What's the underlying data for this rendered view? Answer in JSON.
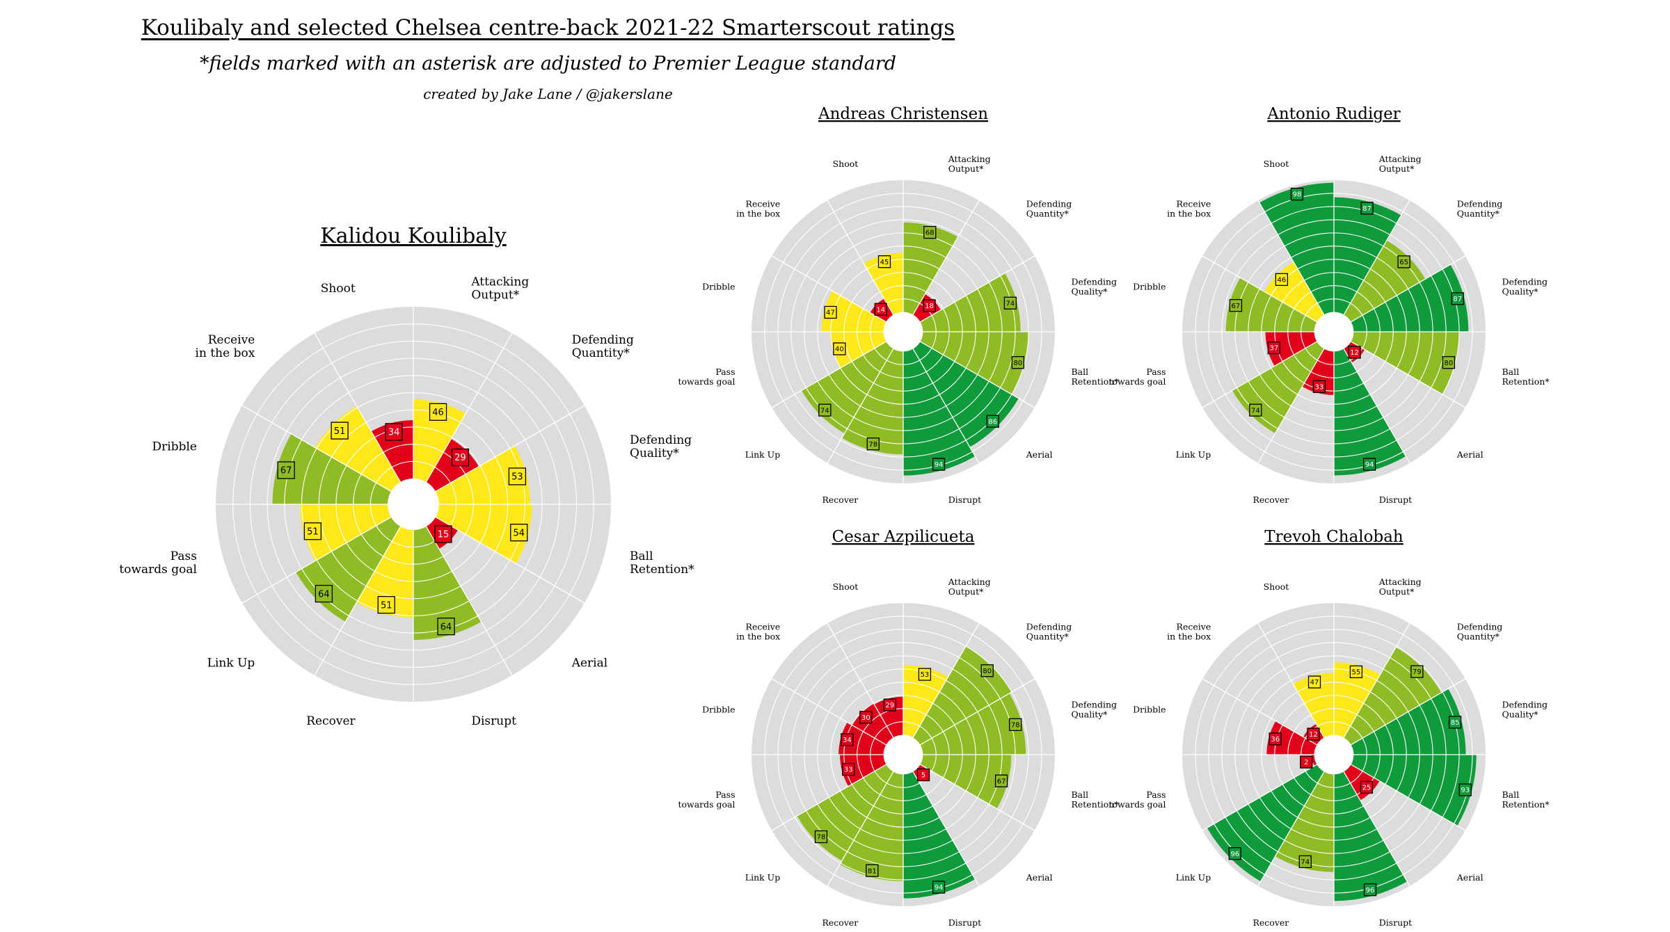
{
  "title": "Koulibaly and selected Chelsea centre-back 2021-22 Smarterscout ratings",
  "subtitle": "*fields marked with an asterisk are adjusted to Premier League standard",
  "credit": "created by Jake Lane / @jakerslane",
  "colors": {
    "background_wedge": "#dcdcdc",
    "grid": "#ffffff",
    "low": "#e2001a",
    "mid": "#ffe81a",
    "high": "#8fbc24",
    "elite": "#0f9a3c",
    "label_text": "#000000"
  },
  "chart_data": [
    {
      "type": "polar-bar",
      "title": "Kalidou Koulibaly",
      "categories": [
        "Attacking Output*",
        "Defending Quantity*",
        "Defending Quality*",
        "Ball Retention*",
        "Aerial",
        "Disrupt",
        "Recover",
        "Link Up",
        "Pass towards goal",
        "Dribble",
        "Receive in the box",
        "Shoot"
      ],
      "values": [
        46,
        29,
        53,
        54,
        15,
        64,
        51,
        64,
        51,
        67,
        51,
        34
      ],
      "rlim": [
        0,
        100
      ],
      "grid": true
    },
    {
      "type": "polar-bar",
      "title": "Andreas Christensen",
      "categories": [
        "Attacking Output*",
        "Defending Quantity*",
        "Defending Quality*",
        "Ball Retention*",
        "Aerial",
        "Disrupt",
        "Recover",
        "Link Up",
        "Pass towards goal",
        "Dribble",
        "Receive in the box",
        "Shoot"
      ],
      "values": [
        68,
        18,
        74,
        80,
        86,
        94,
        78,
        74,
        40,
        47,
        14,
        45
      ],
      "rlim": [
        0,
        100
      ],
      "grid": true
    },
    {
      "type": "polar-bar",
      "title": "Antonio Rudiger",
      "categories": [
        "Attacking Output*",
        "Defending Quantity*",
        "Defending Quality*",
        "Ball Retention*",
        "Aerial",
        "Disrupt",
        "Recover",
        "Link Up",
        "Pass towards goal",
        "Dribble",
        "Receive in the box",
        "Shoot"
      ],
      "values": [
        87,
        65,
        87,
        80,
        12,
        94,
        33,
        74,
        37,
        67,
        46,
        98
      ],
      "rlim": [
        0,
        100
      ],
      "grid": true
    },
    {
      "type": "polar-bar",
      "title": "Cesar Azpilicueta",
      "categories": [
        "Attacking Output*",
        "Defending Quantity*",
        "Defending Quality*",
        "Ball Retention*",
        "Aerial",
        "Disrupt",
        "Recover",
        "Link Up",
        "Pass towards goal",
        "Dribble",
        "Receive in the box",
        "Shoot"
      ],
      "values": [
        53,
        80,
        78,
        67,
        5,
        94,
        81,
        78,
        33,
        34,
        30,
        29
      ],
      "rlim": [
        0,
        100
      ],
      "grid": true
    },
    {
      "type": "polar-bar",
      "title": "Trevoh Chalobah",
      "categories": [
        "Attacking Output*",
        "Defending Quantity*",
        "Defending Quality*",
        "Ball Retention*",
        "Aerial",
        "Disrupt",
        "Recover",
        "Link Up",
        "Pass towards goal",
        "Dribble",
        "Receive in the box",
        "Shoot"
      ],
      "values": [
        55,
        79,
        85,
        93,
        25,
        96,
        74,
        96,
        2,
        36,
        12,
        47
      ],
      "rlim": [
        0,
        100
      ],
      "grid": true
    }
  ]
}
